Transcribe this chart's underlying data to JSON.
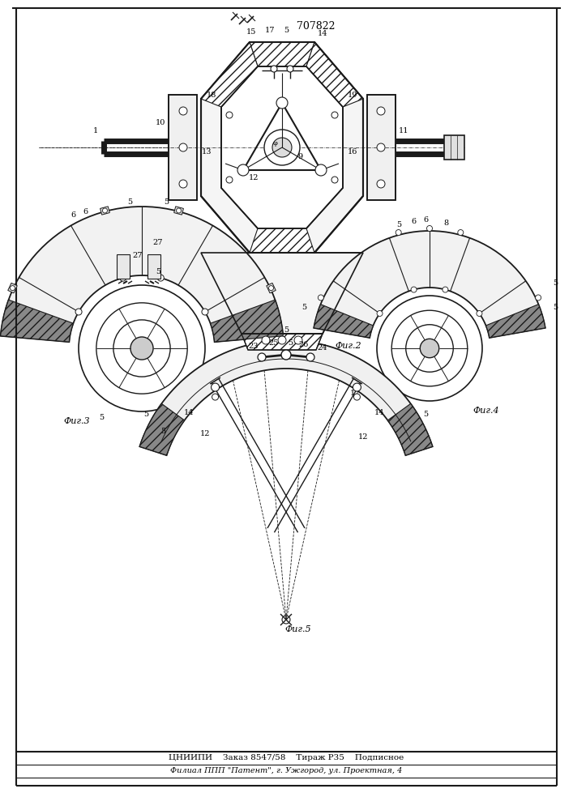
{
  "title": "707822",
  "fig2_label": "Фиг.2",
  "fig3_label": "Фиг.3",
  "fig4_label": "Фиг.4",
  "fig5_label": "Фиг.5",
  "bottom_line1": "ЦНИИПИ    Заказ 8547/58    Тираж Р35    Подписное",
  "bottom_line2": "Филиал ППП \"Патент\", г. Ужгород, ул. Проектная, 4",
  "bg_color": "#ffffff",
  "line_color": "#1a1a1a",
  "lw": 0.8
}
